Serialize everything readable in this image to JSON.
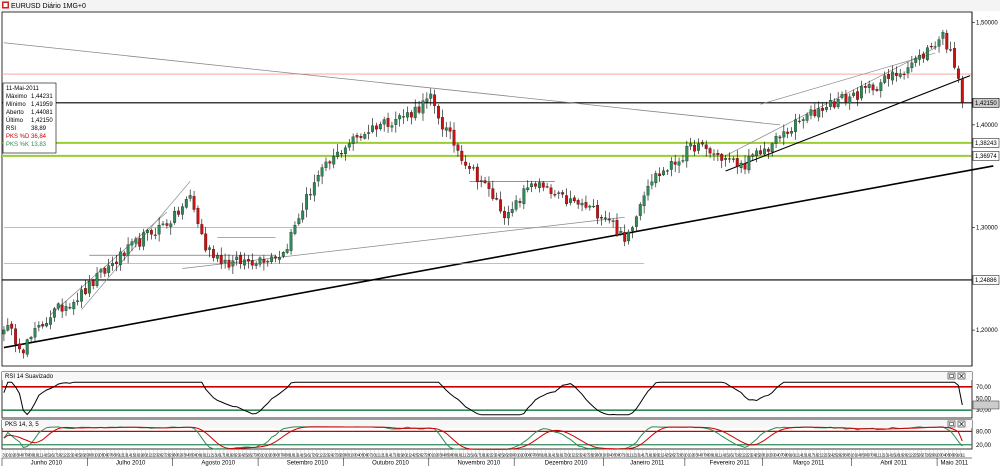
{
  "window": {
    "title": "EURUSD Diário 1MG+0",
    "icon_name": "chart-window-icon"
  },
  "info_box": {
    "date": "11-Mai-2011",
    "rows": [
      {
        "label": "Máximo",
        "value": "1,44231",
        "color": "#000000"
      },
      {
        "label": "Mínimo",
        "value": "1,41959",
        "color": "#000000"
      },
      {
        "label": "Aberto",
        "value": "1,44081",
        "color": "#000000"
      },
      {
        "label": "Último",
        "value": "1,42150",
        "color": "#000000"
      },
      {
        "label": "RSI",
        "value": "38,89",
        "color": "#000000"
      },
      {
        "label": "PKS %D",
        "value": "36,84",
        "color": "#cc0000"
      },
      {
        "label": "PKS %K",
        "value": "13,83",
        "color": "#2e8b57"
      }
    ]
  },
  "chart_data": [
    {
      "type": "candlestick",
      "name": "price",
      "ylim": [
        1.165,
        1.51
      ],
      "y_ticks": [
        {
          "value": 1.5,
          "label": "1,50000"
        },
        {
          "value": 1.4,
          "label": "1,40000"
        },
        {
          "value": 1.3,
          "label": "1,30000"
        },
        {
          "value": 1.2,
          "label": "1,20000"
        }
      ],
      "last_price": {
        "value": 1.4215,
        "label": "1,42150"
      },
      "horizontal_levels": [
        {
          "value": 1.4215,
          "label": "1,42150",
          "color": "#000000"
        },
        {
          "value": 1.38243,
          "label": "1,38243",
          "color": "#9acd32"
        },
        {
          "value": 1.36974,
          "label": "1,36974",
          "color": "#9acd32"
        },
        {
          "value": 1.24886,
          "label": "1,24886",
          "color": "#000000"
        },
        {
          "value": 1.4495,
          "label": "",
          "color": "#ff9999"
        }
      ],
      "waypoints": [
        [
          0,
          1.205
        ],
        [
          5,
          1.183
        ],
        [
          12,
          1.215
        ],
        [
          20,
          1.235
        ],
        [
          28,
          1.265
        ],
        [
          36,
          1.29
        ],
        [
          44,
          1.31
        ],
        [
          48,
          1.33
        ],
        [
          52,
          1.28
        ],
        [
          58,
          1.265
        ],
        [
          64,
          1.268
        ],
        [
          72,
          1.275
        ],
        [
          80,
          1.345
        ],
        [
          88,
          1.38
        ],
        [
          96,
          1.4
        ],
        [
          104,
          1.41
        ],
        [
          110,
          1.425
        ],
        [
          113,
          1.4
        ],
        [
          118,
          1.37
        ],
        [
          124,
          1.34
        ],
        [
          130,
          1.31
        ],
        [
          136,
          1.345
        ],
        [
          142,
          1.33
        ],
        [
          150,
          1.32
        ],
        [
          156,
          1.31
        ],
        [
          160,
          1.285
        ],
        [
          166,
          1.345
        ],
        [
          172,
          1.36
        ],
        [
          178,
          1.38
        ],
        [
          184,
          1.37
        ],
        [
          190,
          1.36
        ],
        [
          196,
          1.375
        ],
        [
          204,
          1.4
        ],
        [
          212,
          1.42
        ],
        [
          220,
          1.43
        ],
        [
          228,
          1.445
        ],
        [
          236,
          1.465
        ],
        [
          242,
          1.488
        ],
        [
          246,
          1.45
        ],
        [
          249,
          1.4215
        ]
      ],
      "trend_lines": [
        {
          "p1": [
            0,
            1.183
          ],
          "p2": [
            255,
            1.36
          ],
          "color": "#000000",
          "width": 1.6
        },
        {
          "p1": [
            0,
            1.48
          ],
          "p2": [
            200,
            1.4
          ],
          "color": "#888888",
          "width": 0.8
        },
        {
          "p1": [
            186,
            1.355
          ],
          "p2": [
            249,
            1.448
          ],
          "color": "#000000",
          "width": 1.1
        },
        {
          "p1": [
            186,
            1.37
          ],
          "p2": [
            240,
            1.475
          ],
          "color": "#888888",
          "width": 0.7
        },
        {
          "p1": [
            195,
            1.42
          ],
          "p2": [
            240,
            1.47
          ],
          "color": "#888888",
          "width": 0.7
        },
        {
          "p1": [
            46,
            1.26
          ],
          "p2": [
            160,
            1.31
          ],
          "color": "#888888",
          "width": 0.7
        },
        {
          "p1": [
            12,
            1.215
          ],
          "p2": [
            42,
            1.315
          ],
          "color": "#888888",
          "width": 0.7
        },
        {
          "p1": [
            20,
            1.22
          ],
          "p2": [
            48,
            1.345
          ],
          "color": "#888888",
          "width": 0.7
        },
        {
          "p1": [
            0,
            1.3
          ],
          "p2": [
            160,
            1.3
          ],
          "color": "#999999",
          "width": 0.6
        },
        {
          "p1": [
            0,
            1.265
          ],
          "p2": [
            165,
            1.265
          ],
          "color": "#999999",
          "width": 0.6
        },
        {
          "p1": [
            22,
            1.273
          ],
          "p2": [
            70,
            1.273
          ],
          "color": "#555555",
          "width": 0.6
        },
        {
          "p1": [
            55,
            1.29
          ],
          "p2": [
            70,
            1.29
          ],
          "color": "#555555",
          "width": 0.6
        },
        {
          "p1": [
            120,
            1.345
          ],
          "p2": [
            142,
            1.345
          ],
          "color": "#555555",
          "width": 0.6
        }
      ]
    },
    {
      "type": "line",
      "name": "RSI 14 Suavizado",
      "ylim": [
        20,
        80
      ],
      "y_ticks": [
        {
          "value": 70,
          "label": "70,00"
        },
        {
          "value": 50,
          "label": "50,00"
        },
        {
          "value": 40,
          "label": "40,00"
        },
        {
          "value": 30,
          "label": "30,00"
        }
      ],
      "levels": [
        {
          "value": 70,
          "color": "#cc0000"
        },
        {
          "value": 30,
          "color": "#2e8b57"
        }
      ],
      "last": 38.89
    },
    {
      "type": "line",
      "name": "PKS 14, 3, 5",
      "ylim": [
        10,
        95
      ],
      "y_ticks": [
        {
          "value": 80,
          "label": "80,00"
        },
        {
          "value": 20,
          "label": "20,00"
        }
      ],
      "levels": [
        {
          "value": 80,
          "color": "#cc0000"
        },
        {
          "value": 20,
          "color": "#2e8b57"
        }
      ],
      "series": [
        {
          "name": "PKS %D",
          "color": "#cc0000",
          "last": 36.84
        },
        {
          "name": "PKS %K",
          "color": "#2e8b57",
          "last": 13.83
        }
      ]
    }
  ],
  "x_axis": {
    "day_labels": [
      "31",
      "01",
      "02",
      "03",
      "04",
      "07",
      "08",
      "09",
      "10",
      "11",
      "14",
      "15",
      "16",
      "17",
      "18",
      "21",
      "22",
      "23",
      "24",
      "25",
      "28",
      "29",
      "30",
      "01",
      "02",
      "05",
      "06",
      "07",
      "08",
      "09",
      "12",
      "13",
      "14",
      "15",
      "16",
      "19",
      "20",
      "21",
      "22",
      "23",
      "26",
      "27",
      "28",
      "29",
      "30",
      "02",
      "03",
      "04",
      "05",
      "06",
      "09",
      "10",
      "11",
      "12",
      "13",
      "16",
      "17",
      "18",
      "19",
      "20",
      "23",
      "24",
      "25",
      "26",
      "27",
      "30",
      "31",
      "01",
      "02",
      "03",
      "06",
      "07",
      "08",
      "09",
      "10",
      "13",
      "14",
      "15",
      "16",
      "17",
      "20",
      "21",
      "22",
      "23",
      "24",
      "27",
      "28",
      "29",
      "30",
      "31",
      "03",
      "04",
      "05",
      "06",
      "07",
      "10",
      "11",
      "12",
      "13",
      "14",
      "17",
      "18",
      "19",
      "20",
      "21",
      "24",
      "25",
      "26",
      "27",
      "28",
      "01",
      "02",
      "03",
      "04",
      "05",
      "08",
      "09",
      "10",
      "11",
      "12",
      "15",
      "16",
      "17",
      "18",
      "19",
      "22",
      "23",
      "24",
      "25",
      "26",
      "29",
      "30",
      "01",
      "02",
      "03",
      "06",
      "07",
      "08",
      "09",
      "10",
      "13",
      "14",
      "15",
      "16",
      "17",
      "20",
      "21",
      "22",
      "23",
      "24",
      "27",
      "28",
      "29",
      "30",
      "31",
      "03",
      "04",
      "05",
      "06",
      "07",
      "10",
      "11",
      "12",
      "13",
      "14",
      "17",
      "18",
      "19",
      "20",
      "21",
      "24",
      "25",
      "26",
      "27",
      "28",
      "31",
      "01",
      "02",
      "03",
      "04",
      "07",
      "08",
      "09",
      "10",
      "11",
      "14",
      "15",
      "16",
      "17",
      "18",
      "21",
      "22",
      "23",
      "24",
      "25",
      "28",
      "01",
      "02",
      "03",
      "04",
      "07",
      "08",
      "09",
      "10",
      "11",
      "14",
      "15",
      "16",
      "17",
      "18",
      "21",
      "22",
      "23",
      "24",
      "25",
      "28",
      "29",
      "30",
      "31",
      "01",
      "04",
      "05",
      "06",
      "07",
      "08",
      "11",
      "12",
      "13",
      "14",
      "15",
      "18",
      "19",
      "20",
      "21",
      "22",
      "25",
      "26",
      "27",
      "28",
      "29",
      "02",
      "03",
      "04",
      "05",
      "06",
      "09",
      "10",
      "11"
    ],
    "months": [
      {
        "label": "Junho 2010",
        "start": 0,
        "end": 22
      },
      {
        "label": "Julho 2010",
        "start": 22,
        "end": 44
      },
      {
        "label": "Agosto 2010",
        "start": 44,
        "end": 66
      },
      {
        "label": "Setembro 2010",
        "start": 66,
        "end": 88
      },
      {
        "label": "Outubro 2010",
        "start": 88,
        "end": 110
      },
      {
        "label": "Novembro 2010",
        "start": 110,
        "end": 132
      },
      {
        "label": "Dezembro 2010",
        "start": 132,
        "end": 155
      },
      {
        "label": "Janeiro 2011",
        "start": 155,
        "end": 176
      },
      {
        "label": "Fevereiro 2011",
        "start": 176,
        "end": 196
      },
      {
        "label": "Março 2011",
        "start": 196,
        "end": 219
      },
      {
        "label": "Abril 2011",
        "start": 219,
        "end": 241
      },
      {
        "label": "Maio 2011",
        "start": 241,
        "end": 250
      }
    ]
  },
  "colors": {
    "bull": "#2e8b57",
    "bear": "#cc1111",
    "wick": "#000000",
    "grid_frame": "#000000",
    "price_marker_bg": "#cccccc"
  },
  "panel_icons": [
    "panel-restore-icon",
    "panel-close-icon"
  ]
}
